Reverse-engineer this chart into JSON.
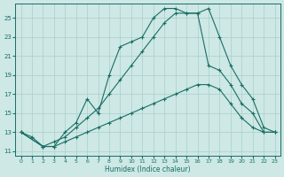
{
  "xlabel": "Humidex (Indice chaleur)",
  "background_color": "#cde8e5",
  "grid_color": "#aacfcc",
  "line_color": "#1a6e65",
  "xlim": [
    -0.5,
    23.5
  ],
  "ylim": [
    10.5,
    26.5
  ],
  "xticks": [
    0,
    1,
    2,
    3,
    4,
    5,
    6,
    7,
    8,
    9,
    10,
    11,
    12,
    13,
    14,
    15,
    16,
    17,
    18,
    19,
    20,
    21,
    22,
    23
  ],
  "yticks": [
    11,
    13,
    15,
    17,
    19,
    21,
    23,
    25
  ],
  "series": [
    {
      "x": [
        0,
        1,
        2,
        3,
        4,
        5,
        6,
        7,
        8,
        9,
        10,
        11,
        12,
        13,
        14,
        15,
        16,
        17,
        18,
        19,
        20,
        21,
        22,
        23
      ],
      "y": [
        13,
        12.5,
        11.5,
        11.5,
        13,
        14,
        16.5,
        15,
        19,
        22,
        22.5,
        23,
        25,
        26,
        26,
        25.5,
        25.5,
        26,
        23,
        20,
        18,
        16.5,
        13.5,
        13
      ]
    },
    {
      "x": [
        0,
        2,
        3,
        4,
        5,
        6,
        7,
        8,
        9,
        10,
        11,
        12,
        13,
        14,
        15,
        16,
        17,
        18,
        19,
        20,
        21,
        22,
        23
      ],
      "y": [
        13,
        11.5,
        12,
        12.5,
        13.5,
        14.5,
        15.5,
        17,
        18.5,
        20,
        21.5,
        23,
        24.5,
        25.5,
        25.5,
        25.5,
        20,
        19.5,
        18,
        16,
        15,
        13,
        13
      ]
    },
    {
      "x": [
        0,
        2,
        3,
        4,
        5,
        6,
        7,
        8,
        9,
        10,
        11,
        12,
        13,
        14,
        15,
        16,
        17,
        18,
        19,
        20,
        21,
        22,
        23
      ],
      "y": [
        13,
        11.5,
        11.5,
        12,
        12.5,
        13,
        13.5,
        14,
        14.5,
        15,
        15.5,
        16,
        16.5,
        17,
        17.5,
        18,
        18,
        17.5,
        16,
        14.5,
        13.5,
        13,
        13
      ]
    }
  ]
}
